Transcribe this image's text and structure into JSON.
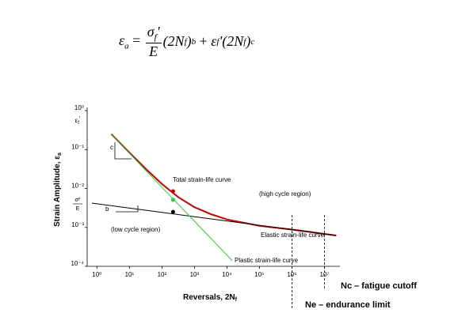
{
  "formula": {
    "lhs": [
      "ε",
      "a",
      "="
    ],
    "num": [
      "σ",
      "f",
      "'"
    ],
    "den": "E",
    "term1": [
      "(2N",
      "f",
      ")",
      "b"
    ],
    "plus": "+",
    "term2": [
      "ε",
      "f",
      "'(2N",
      "f",
      ")",
      "c"
    ]
  },
  "chart_data": {
    "type": "line",
    "log_x": true,
    "log_y": true,
    "xlabel": [
      "Reversals, 2N",
      "f"
    ],
    "ylabel": [
      "Strain Amplitude, ε",
      "a"
    ],
    "xlim": [
      0.5,
      30000000
    ],
    "ylim": [
      0.0001,
      1
    ],
    "xticks": [
      {
        "value": 1,
        "label": "10⁰"
      },
      {
        "value": 10,
        "label": "10¹"
      },
      {
        "value": 100,
        "label": "10²"
      },
      {
        "value": 1000,
        "label": "10³"
      },
      {
        "value": 10000,
        "label": "10⁴"
      },
      {
        "value": 100000,
        "label": "10⁵"
      },
      {
        "value": 1000000,
        "label": "10⁶"
      },
      {
        "value": 10000000,
        "label": "10⁷"
      }
    ],
    "yticks": [
      {
        "value": 1,
        "label": "10⁰"
      },
      {
        "value": 0.1,
        "label": "10⁻¹"
      },
      {
        "value": 0.01,
        "label": "10⁻²"
      },
      {
        "value": 0.001,
        "label": "10⁻³"
      },
      {
        "value": 0.0001,
        "label": "10⁻⁴"
      }
    ],
    "y_markers": {
      "eps_f": [
        "ε",
        "f",
        "'"
      ],
      "sigma_over_E": {
        "num": [
          "σ",
          "f",
          "'"
        ],
        "den": "E"
      }
    },
    "series": [
      {
        "name": "Total strain-life curve",
        "color": "#cc0000",
        "x": [
          2.75,
          10,
          31.6,
          100,
          316,
          1000,
          3162,
          10000,
          100000,
          1000000,
          10000000,
          23000000
        ],
        "values": [
          0.25,
          0.083,
          0.032,
          0.013,
          0.006,
          0.0033,
          0.0022,
          0.0016,
          0.0011,
          0.00088,
          0.00068,
          0.00062
        ]
      },
      {
        "name": "Elastic strain-life curve",
        "color": "#000000",
        "x": [
          0.7,
          23000000
        ],
        "values": [
          0.0042,
          0.00062
        ]
      },
      {
        "name": "Plastic strain-life curve",
        "color": "#33cc33",
        "x": [
          2.75,
          14500
        ],
        "values": [
          0.245,
          0.00014
        ]
      }
    ],
    "points": [
      {
        "x": 220,
        "value": 0.0085,
        "color": "#cc0000"
      },
      {
        "x": 220,
        "value": 0.0051,
        "color": "#33cc33"
      },
      {
        "x": 220,
        "value": 0.0025,
        "color": "#000000"
      }
    ],
    "annotations": [
      "(high cycle region)",
      "(low cycle region)",
      "c",
      "b"
    ],
    "vlines": [
      {
        "value": 1000000,
        "label": "Ne – endurance limit"
      },
      {
        "value": 10000000,
        "label": "Nc – fatigue cutoff"
      }
    ]
  }
}
